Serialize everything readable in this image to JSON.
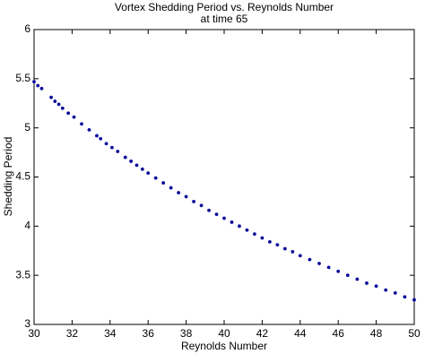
{
  "chart_data": {
    "type": "scatter",
    "title": "Vortex Shedding Period vs. Reynolds Number",
    "subtitle": "at time 65",
    "x_label": "Reynolds Number",
    "y_label": "Shedding Period",
    "color": "#0a0a9a",
    "x": [
      30.0,
      30.2,
      30.4,
      30.9,
      31.1,
      31.3,
      31.5,
      31.8,
      32.1,
      32.5,
      32.9,
      33.3,
      33.5,
      33.8,
      34.1,
      34.4,
      34.8,
      35.1,
      35.4,
      35.7,
      36.0,
      36.4,
      36.8,
      37.2,
      37.6,
      38.0,
      38.4,
      38.8,
      39.2,
      39.6,
      40.0,
      40.4,
      40.8,
      41.2,
      41.6,
      42.0,
      42.4,
      42.8,
      43.2,
      43.6,
      44.0,
      44.5,
      45.0,
      45.5,
      46.0,
      46.5,
      47.0,
      47.5,
      48.0,
      48.5,
      49.0,
      49.5,
      50.0
    ],
    "values": [
      5.47,
      5.43,
      5.4,
      5.31,
      5.27,
      5.24,
      5.2,
      5.15,
      5.11,
      5.04,
      4.98,
      4.92,
      4.89,
      4.84,
      4.8,
      4.76,
      4.7,
      4.66,
      4.62,
      4.58,
      4.54,
      4.49,
      4.44,
      4.39,
      4.34,
      4.3,
      4.25,
      4.21,
      4.16,
      4.12,
      4.08,
      4.04,
      4.0,
      3.96,
      3.92,
      3.88,
      3.84,
      3.81,
      3.77,
      3.74,
      3.7,
      3.66,
      3.62,
      3.58,
      3.54,
      3.5,
      3.46,
      3.42,
      3.39,
      3.35,
      3.32,
      3.28,
      3.25
    ],
    "xlim": [
      30,
      50
    ],
    "ylim": [
      3,
      6
    ],
    "xticks": [
      30,
      32,
      34,
      36,
      38,
      40,
      42,
      44,
      46,
      48,
      50
    ],
    "yticks": [
      3,
      3.5,
      4,
      4.5,
      5,
      5.5,
      6
    ],
    "grid": false
  }
}
